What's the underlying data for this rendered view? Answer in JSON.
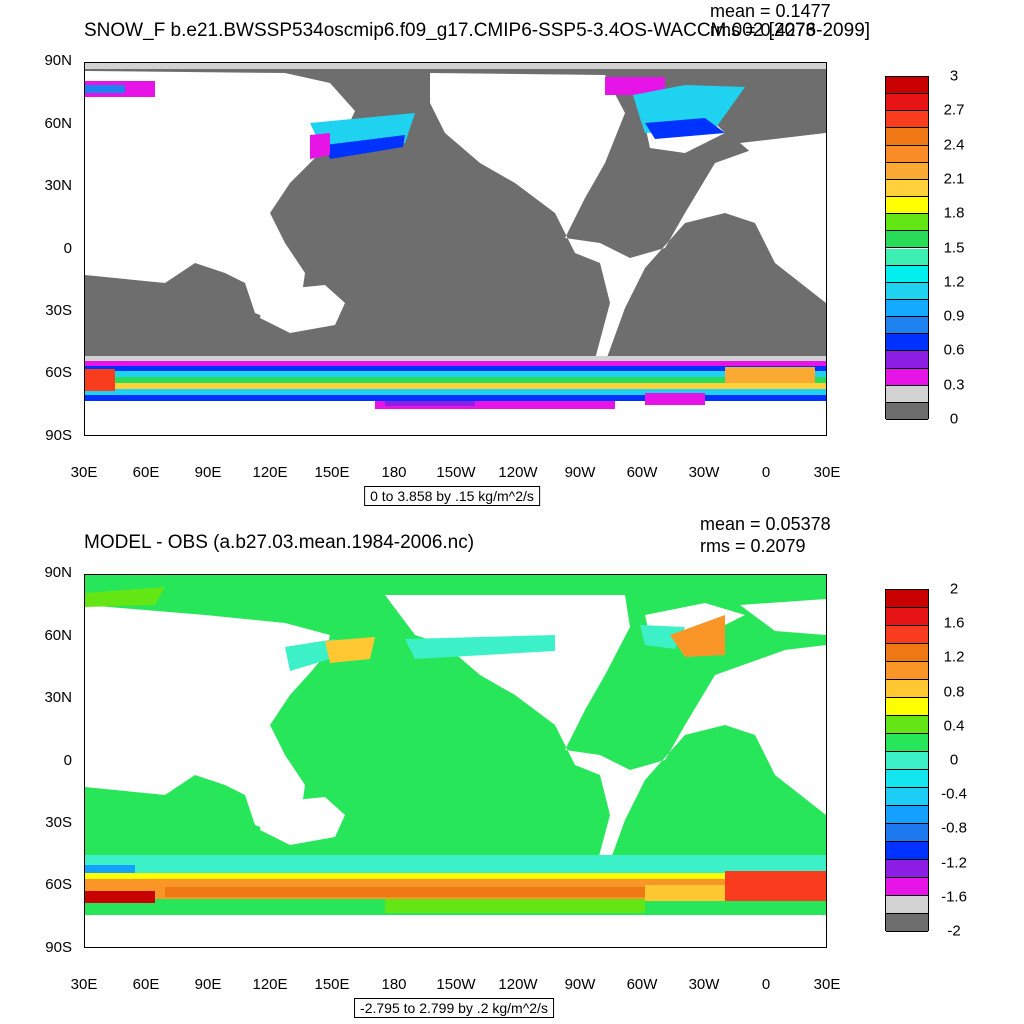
{
  "top_panel": {
    "title": "SNOW_F b.e21.BWSSP534oscmip6.f09_g17.CMIP6-SSP5-3.4OS-WACCM.002 [2076-2099]",
    "mean_text": "mean = 0.1477",
    "rms_text": "rms = 0.4273",
    "info_text": "0 to 3.858 by .15 kg/m^2/s",
    "colorbar": {
      "labels": [
        "3",
        "2.7",
        "2.4",
        "2.1",
        "1.8",
        "1.5",
        "1.2",
        "0.9",
        "0.6",
        "0.3",
        "0"
      ],
      "colors": [
        "#c80000",
        "#e61414",
        "#fa3c1e",
        "#f07814",
        "#fa8c28",
        "#faaa32",
        "#ffd23c",
        "#ffff00",
        "#64e614",
        "#28dc5a",
        "#3cf0b4",
        "#00f0f0",
        "#1ed2f0",
        "#14aaff",
        "#1e82f0",
        "#0032ff",
        "#8c1ee6",
        "#e614e6",
        "#d2d2d2",
        "#6e6e6e"
      ]
    }
  },
  "bottom_panel": {
    "title": "MODEL - OBS (a.b27.03.mean.1984-2006.nc)",
    "mean_text": "mean = 0.05378",
    "rms_text": "rms = 0.2079",
    "info_text": "-2.795 to 2.799 by .2 kg/m^2/s",
    "colorbar": {
      "labels": [
        "2",
        "1.6",
        "1.2",
        "0.8",
        "0.4",
        "0",
        "-0.4",
        "-0.8",
        "-1.2",
        "-1.6",
        "-2"
      ],
      "colors": [
        "#c80000",
        "#e61414",
        "#fa3c1e",
        "#f07814",
        "#fa9628",
        "#ffc832",
        "#ffff00",
        "#64e614",
        "#28e65a",
        "#3cf0c8",
        "#14e6f0",
        "#1ecdf5",
        "#14a0ff",
        "#1e78f0",
        "#0032ff",
        "#8c1ee6",
        "#e614e6",
        "#d2d2d2",
        "#6e6e6e"
      ]
    }
  },
  "axes": {
    "lat_labels": [
      "90N",
      "60N",
      "30N",
      "0",
      "30S",
      "60S",
      "90S"
    ],
    "lon_labels": [
      "30E",
      "60E",
      "90E",
      "120E",
      "150E",
      "180",
      "150W",
      "120W",
      "90W",
      "60W",
      "30W",
      "0",
      "30E"
    ]
  }
}
